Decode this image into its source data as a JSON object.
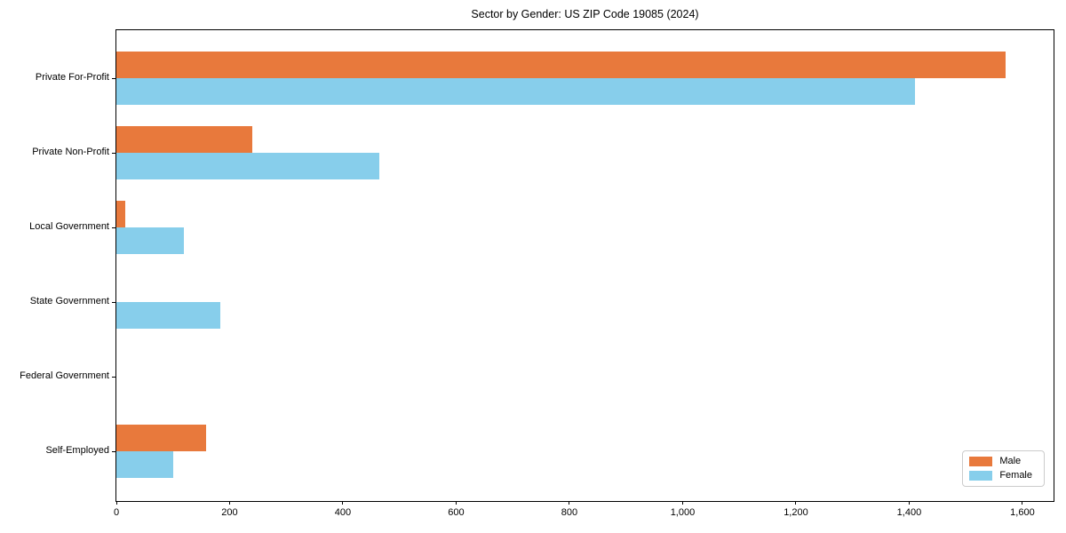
{
  "chart_data": {
    "type": "bar",
    "orientation": "horizontal",
    "title": "Sector by Gender: US ZIP Code 19085 (2024)",
    "categories": [
      "Private For-Profit",
      "Private Non-Profit",
      "Local Government",
      "State Government",
      "Federal Government",
      "Self-Employed"
    ],
    "series": [
      {
        "name": "Male",
        "color": "#e8793c",
        "values": [
          1570,
          240,
          15,
          0,
          0,
          158
        ]
      },
      {
        "name": "Female",
        "color": "#87ceeb",
        "values": [
          1410,
          465,
          120,
          183,
          0,
          100
        ]
      }
    ],
    "xlabel": "",
    "ylabel": "",
    "xlim": [
      0,
      1655
    ],
    "xticks": [
      0,
      200,
      400,
      600,
      800,
      1000,
      1200,
      1400,
      1600
    ],
    "xtick_labels": [
      "0",
      "200",
      "400",
      "600",
      "800",
      "1,000",
      "1,200",
      "1,400",
      "1,600"
    ],
    "grid": false,
    "legend_position": "lower right",
    "plot_background": "#ffffff",
    "spine_color": "#000000"
  }
}
